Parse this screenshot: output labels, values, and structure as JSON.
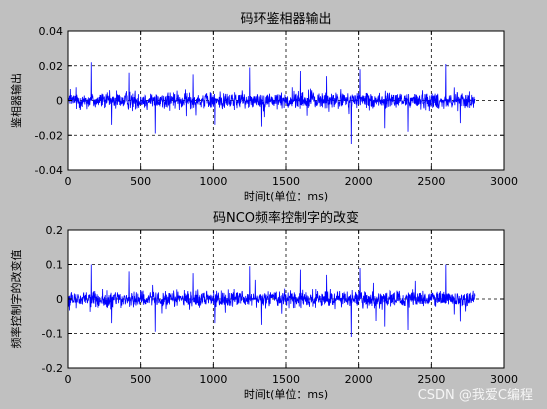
{
  "chart_data": [
    {
      "type": "line",
      "title": "码环鉴相器输出",
      "xlabel": "时间t(单位：ms)",
      "ylabel": "鉴相器输出",
      "xlim": [
        0,
        3000
      ],
      "ylim": [
        -0.04,
        0.04
      ],
      "xticks": [
        0,
        500,
        1000,
        1500,
        2000,
        2500,
        3000
      ],
      "yticks": [
        0.04,
        0.02,
        0,
        -0.02,
        -0.04
      ],
      "ytick_labels": [
        "0.04",
        "0.02",
        "0",
        "-0.02",
        "-0.04"
      ],
      "grid": true,
      "line_color": "#0000ff",
      "signal": {
        "x_start": 0,
        "x_end": 2800,
        "samples": 1400,
        "mean": 0,
        "noise_amplitude": 0.0045,
        "spikes": [
          {
            "x": 160,
            "y": 0.022
          },
          {
            "x": 300,
            "y": -0.014
          },
          {
            "x": 420,
            "y": 0.016
          },
          {
            "x": 600,
            "y": -0.019
          },
          {
            "x": 860,
            "y": 0.015
          },
          {
            "x": 1010,
            "y": -0.014
          },
          {
            "x": 1250,
            "y": 0.019
          },
          {
            "x": 1330,
            "y": -0.015
          },
          {
            "x": 1600,
            "y": 0.017
          },
          {
            "x": 1780,
            "y": 0.014
          },
          {
            "x": 1950,
            "y": -0.025
          },
          {
            "x": 2010,
            "y": 0.018
          },
          {
            "x": 2180,
            "y": -0.016
          },
          {
            "x": 2340,
            "y": -0.018
          },
          {
            "x": 2600,
            "y": 0.021
          },
          {
            "x": 2700,
            "y": -0.013
          }
        ]
      }
    },
    {
      "type": "line",
      "title": "码NCO频率控制字的改变",
      "xlabel": "时间t(单位：ms)",
      "ylabel": "频率控制字的改变值",
      "xlim": [
        0,
        3000
      ],
      "ylim": [
        -0.2,
        0.2
      ],
      "xticks": [
        0,
        500,
        1000,
        1500,
        2000,
        2500,
        3000
      ],
      "yticks": [
        0.2,
        0.1,
        0,
        -0.1,
        -0.2
      ],
      "ytick_labels": [
        "0.2",
        "0.1",
        "0",
        "-0.1",
        "-0.2"
      ],
      "grid": true,
      "line_color": "#0000ff",
      "signal": {
        "x_start": 0,
        "x_end": 2800,
        "samples": 1400,
        "mean": 0,
        "noise_amplitude": 0.022,
        "spikes": [
          {
            "x": 160,
            "y": 0.1
          },
          {
            "x": 300,
            "y": -0.07
          },
          {
            "x": 420,
            "y": 0.08
          },
          {
            "x": 600,
            "y": -0.095
          },
          {
            "x": 860,
            "y": 0.075
          },
          {
            "x": 1010,
            "y": -0.07
          },
          {
            "x": 1250,
            "y": 0.095
          },
          {
            "x": 1330,
            "y": -0.075
          },
          {
            "x": 1600,
            "y": 0.085
          },
          {
            "x": 1780,
            "y": 0.07
          },
          {
            "x": 1950,
            "y": -0.11
          },
          {
            "x": 2010,
            "y": 0.09
          },
          {
            "x": 2180,
            "y": -0.08
          },
          {
            "x": 2340,
            "y": -0.09
          },
          {
            "x": 2600,
            "y": 0.1
          },
          {
            "x": 2700,
            "y": -0.065
          }
        ]
      }
    }
  ],
  "watermark": "CSDN @我爱C编程"
}
